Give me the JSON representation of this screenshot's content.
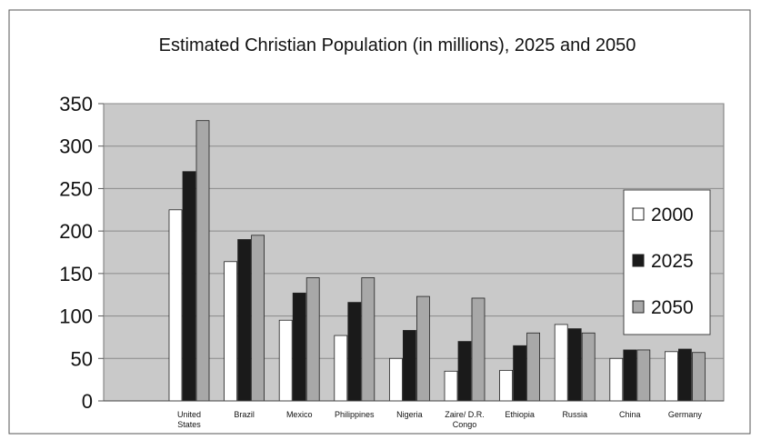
{
  "chart_data": {
    "type": "bar",
    "title": "Estimated Christian Population (in millions), 2025 and 2050",
    "xlabel": "",
    "ylabel": "",
    "ylim": [
      0,
      350
    ],
    "yticks": [
      0,
      50,
      100,
      150,
      200,
      250,
      300,
      350
    ],
    "grid": true,
    "legend_position": "right",
    "categories": [
      [
        "United",
        "States"
      ],
      [
        "Brazil"
      ],
      [
        "Mexico"
      ],
      [
        "Philippines"
      ],
      [
        "Nigeria"
      ],
      [
        "Zaire/ D.R.",
        "Congo"
      ],
      [
        "Ethiopia"
      ],
      [
        "Russia"
      ],
      [
        "China"
      ],
      [
        "Germany"
      ]
    ],
    "series": [
      {
        "name": "2000",
        "color": "#ffffff",
        "values": [
          225,
          164,
          95,
          77,
          50,
          35,
          36,
          90,
          50,
          58
        ]
      },
      {
        "name": "2025",
        "color": "#1a1a1a",
        "values": [
          270,
          190,
          127,
          116,
          83,
          70,
          65,
          85,
          60,
          61
        ]
      },
      {
        "name": "2050",
        "color": "#a8a8a8",
        "values": [
          330,
          195,
          145,
          145,
          123,
          121,
          80,
          80,
          60,
          57
        ]
      }
    ]
  }
}
